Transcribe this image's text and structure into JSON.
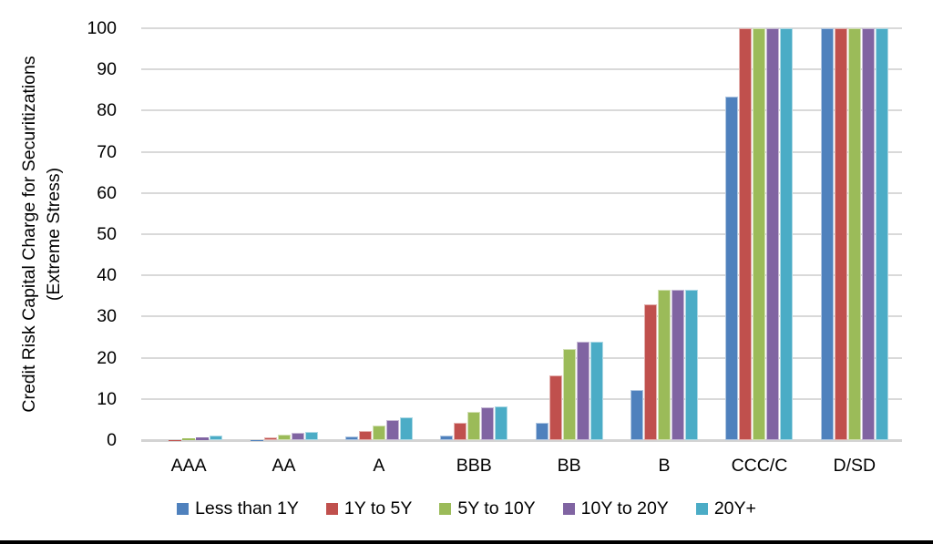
{
  "chart_data": {
    "type": "bar",
    "title": "",
    "ylabel_line1": "Credit Risk Capital Charge for Securitizations",
    "ylabel_line2": "(Extreme Stress)",
    "xlabel": "",
    "categories": [
      "AAA",
      "AA",
      "A",
      "BBB",
      "BB",
      "B",
      "CCC/C",
      "D/SD"
    ],
    "series": [
      {
        "name": "Less than 1Y",
        "color": "#4F81BD",
        "values": [
          0,
          0.1,
          0.9,
          1.2,
          4.1,
          12.2,
          83.3,
          100
        ]
      },
      {
        "name": "1Y to 5Y",
        "color": "#C0504D",
        "values": [
          0.1,
          0.7,
          2.3,
          4.2,
          15.7,
          32.9,
          100,
          100
        ]
      },
      {
        "name": "5Y to 10Y",
        "color": "#9BBB59",
        "values": [
          0.4,
          1.3,
          3.6,
          6.8,
          22.2,
          36.5,
          100,
          100
        ]
      },
      {
        "name": "10Y to 20Y",
        "color": "#8064A2",
        "values": [
          0.6,
          1.7,
          4.9,
          8.0,
          24.0,
          36.5,
          100,
          100
        ]
      },
      {
        "name": "20Y+",
        "color": "#4BACC6",
        "values": [
          1.0,
          2.0,
          5.6,
          8.2,
          24.0,
          36.5,
          100,
          100
        ]
      }
    ],
    "ylim": [
      0,
      100
    ],
    "yticks": [
      0,
      10,
      20,
      30,
      40,
      50,
      60,
      70,
      80,
      90,
      100
    ],
    "grid": true,
    "legend_position": "bottom",
    "colors": {
      "gridline": "#d9d9d9",
      "text": "#000000",
      "background": "#ffffff"
    }
  }
}
